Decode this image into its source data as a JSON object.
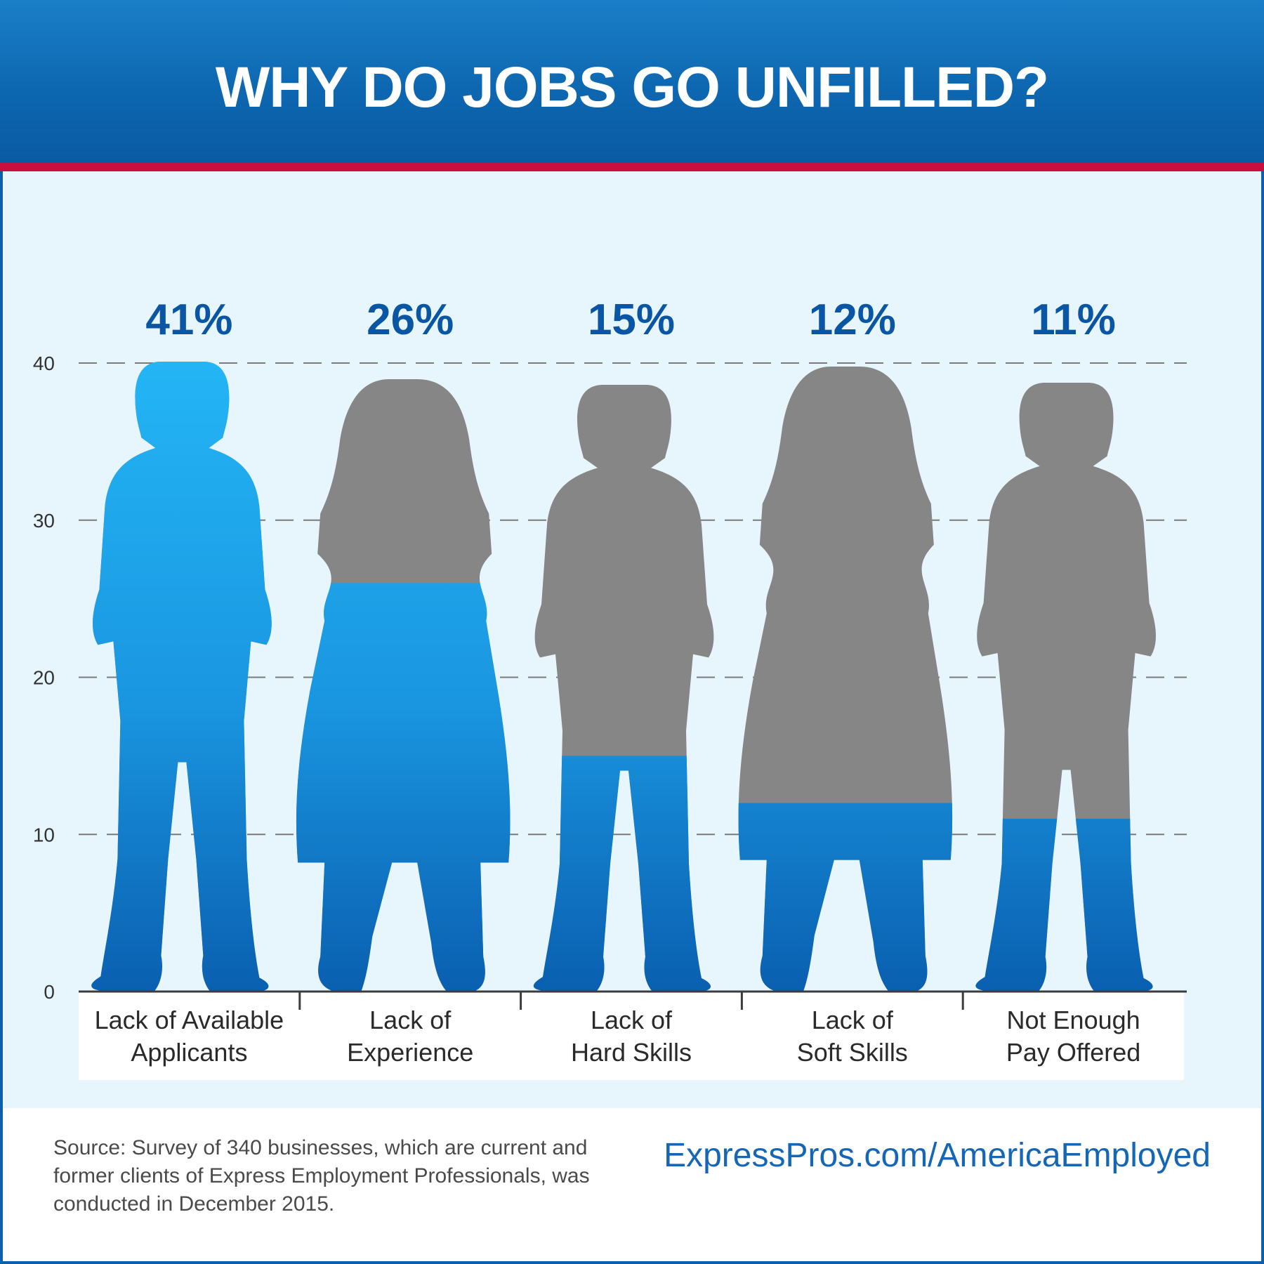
{
  "header": {
    "title": "WHY DO JOBS GO UNFILLED?"
  },
  "colors": {
    "header_blue": "#0d67b0",
    "accent_red": "#c8103e",
    "fill_blue": "#1e9fe6",
    "empty_gray": "#868686",
    "value_blue": "#0b56a4",
    "background": "#e7f6fd"
  },
  "chart_data": {
    "type": "bar",
    "categories": [
      [
        "Lack of Available",
        "Applicants"
      ],
      [
        "Lack of",
        "Experience"
      ],
      [
        "Lack of",
        "Hard Skills"
      ],
      [
        "Lack of",
        "Soft Skills"
      ],
      [
        "Not Enough",
        "Pay Offered"
      ]
    ],
    "values": [
      41,
      26,
      15,
      12,
      11
    ],
    "value_labels": [
      "41%",
      "26%",
      "15%",
      "12%",
      "11%"
    ],
    "ylim": [
      0,
      40
    ],
    "yticks": [
      0,
      10,
      20,
      30,
      40
    ],
    "grid": true,
    "bar_style": "person silhouettes filled up to value"
  },
  "footer": {
    "source": "Source: Survey of 340 businesses, which are current and former clients of Express Employment Professionals, was conducted in December 2015.",
    "link": "ExpressPros.com/AmericaEmployed"
  }
}
